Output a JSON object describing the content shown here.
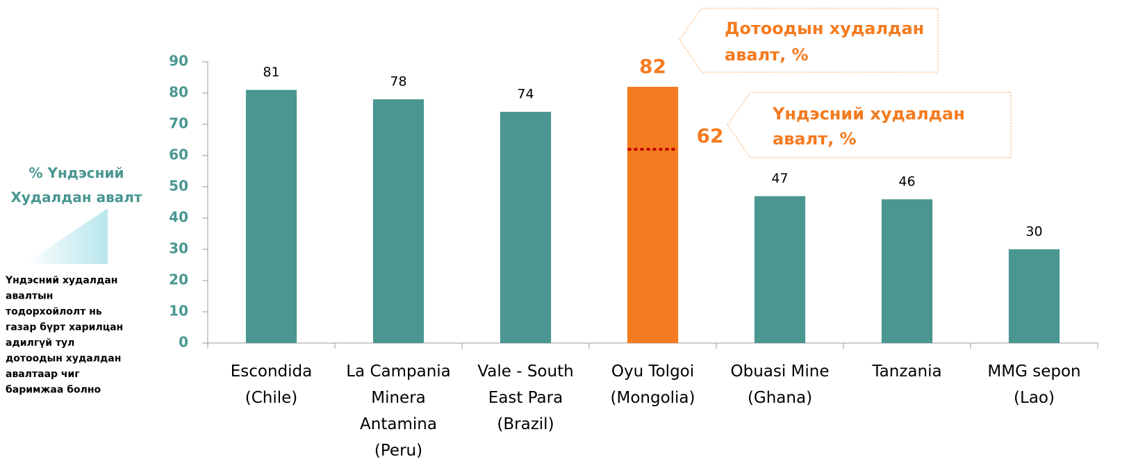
{
  "chart_data": {
    "type": "bar",
    "categories": [
      "Escondida\n(Chile)",
      "La Campania\nMinera\nAntamina\n(Peru)",
      "Vale - South\nEast Para\n(Brazil)",
      "Oyu Tolgoi\n(Mongolia)",
      "Obuasi Mine\n(Ghana)",
      "Tanzania",
      "MMG sepon\n(Lao)"
    ],
    "values": [
      81,
      78,
      74,
      82,
      47,
      46,
      30
    ],
    "colors": [
      "#4a9691",
      "#4a9691",
      "#4a9691",
      "#f47b20",
      "#4a9691",
      "#4a9691",
      "#4a9691"
    ],
    "ylim": [
      0,
      90
    ],
    "yticks": [
      0,
      10,
      20,
      30,
      40,
      50,
      60,
      70,
      80,
      90
    ],
    "annotations": [
      {
        "text": "Дотоодын худалдан\nавалт, %"
      },
      {
        "text": "Үндэсний худалдан\nавалт, %",
        "value": 62,
        "color": "#c00000"
      }
    ],
    "side_title": "% Үндэсний\nХудалдан авалт",
    "side_note": "Үндэсний худалдан\nавалтын\nтодорхойлолт нь\nгазар бүрт харилцан\nадилгүй тул\nдотоодын худалдан\nавалтаар чиг\nбаримжаа болно"
  }
}
